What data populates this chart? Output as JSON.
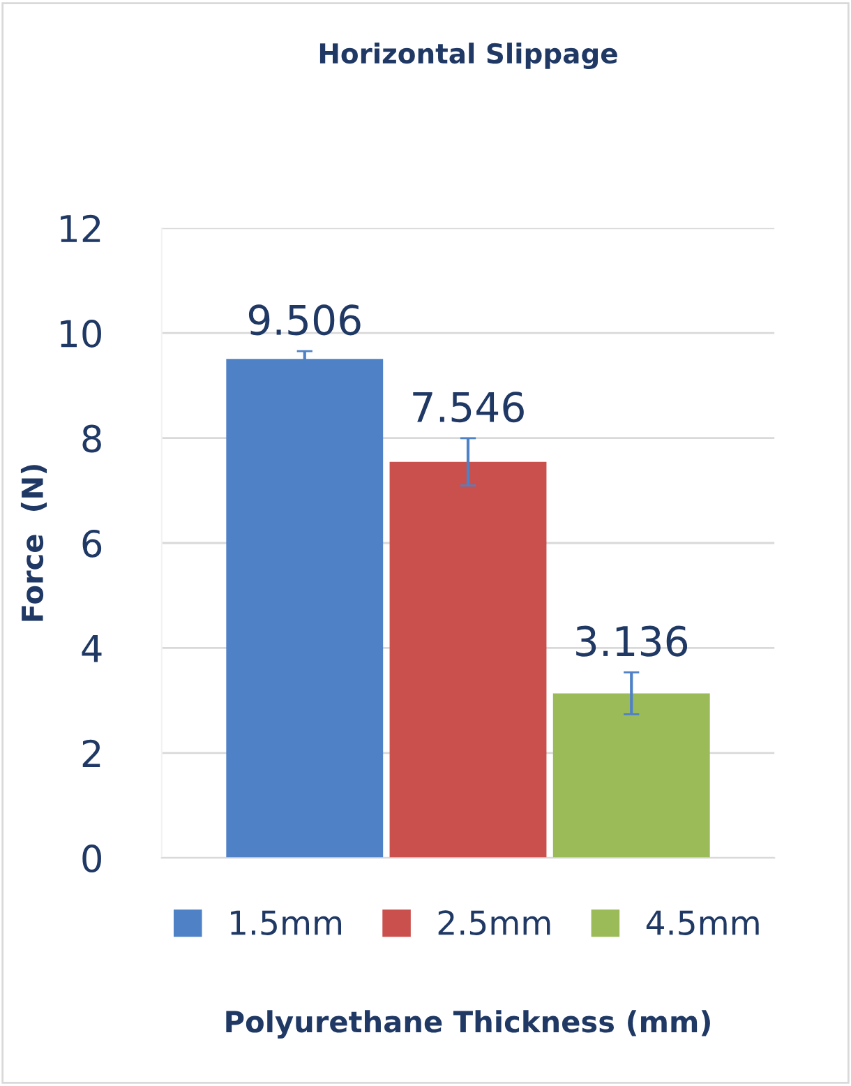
{
  "chart_data": {
    "type": "bar",
    "title": "Horizontal Slippage",
    "xlabel": "Polyurethane Thickness (mm)",
    "ylabel": "Force  (N)",
    "categories": [
      null
    ],
    "series": [
      {
        "name": "1.5mm",
        "color": "#4f81c6",
        "values": [
          9.506
        ],
        "errors": [
          0.15
        ]
      },
      {
        "name": "2.5mm",
        "color": "#c9504d",
        "values": [
          7.546
        ],
        "errors": [
          0.45
        ]
      },
      {
        "name": "4.5mm",
        "color": "#9bbb59",
        "values": [
          3.136
        ],
        "errors": [
          0.4
        ]
      }
    ],
    "ylim": [
      0,
      12
    ],
    "yticks": [
      0,
      2,
      4,
      6,
      8,
      10,
      12
    ],
    "grid": "y",
    "legend": "bottom",
    "data_labels": true
  }
}
